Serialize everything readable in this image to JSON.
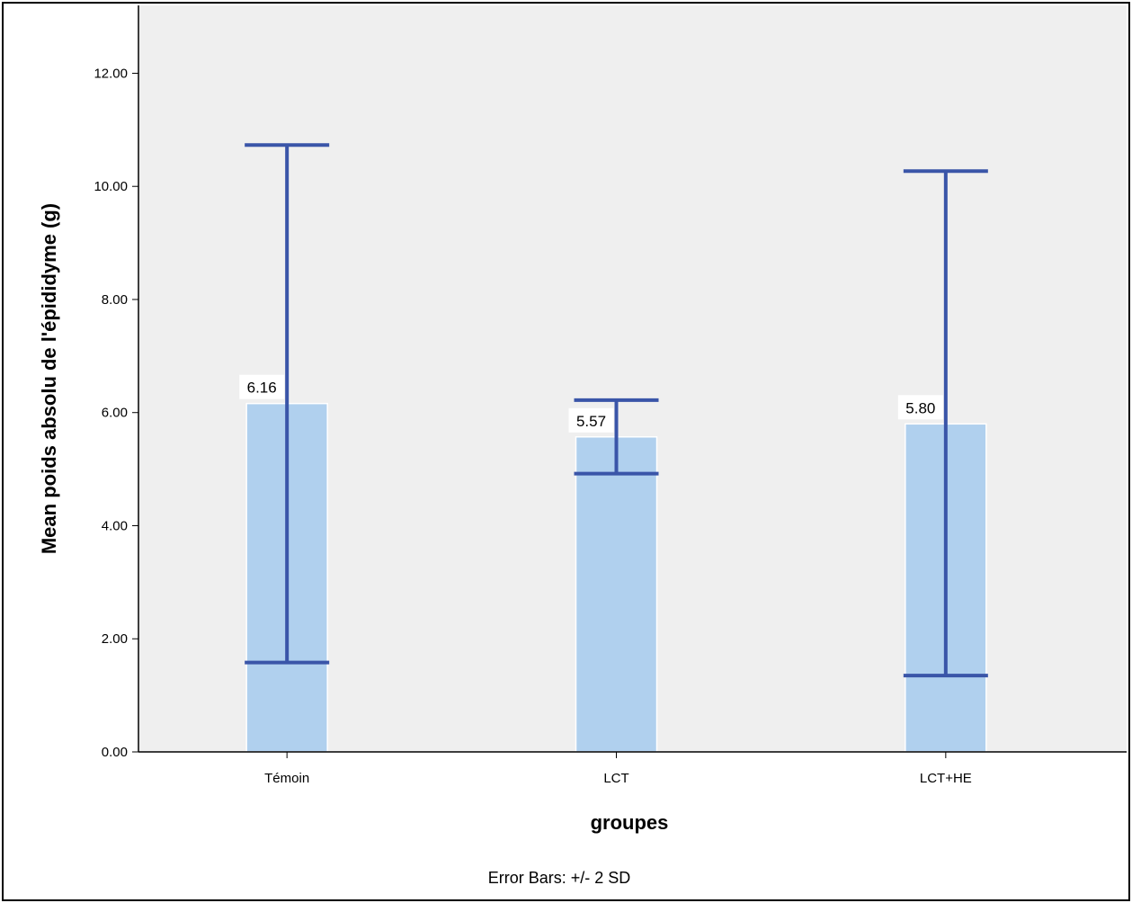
{
  "chart_data": {
    "type": "bar",
    "categories": [
      "Témoin",
      "LCT",
      "LCT+HE"
    ],
    "values": [
      6.16,
      5.57,
      5.8
    ],
    "data_labels": [
      "6.16",
      "5.57",
      "5.80"
    ],
    "error_bars": {
      "lower": [
        1.58,
        4.92,
        1.35
      ],
      "upper": [
        10.73,
        6.22,
        10.27
      ]
    },
    "xlabel": "groupes",
    "ylabel": "Mean poids absolu de l'épididyme (g)",
    "ylim": [
      0,
      13.2
    ],
    "yticks": [
      0,
      2,
      4,
      6,
      8,
      10,
      12
    ],
    "ytick_labels": [
      "0.00",
      "2.00",
      "4.00",
      "6.00",
      "8.00",
      "10.00",
      "12.00"
    ],
    "footnote": "Error Bars: +/- 2 SD",
    "grid": false,
    "legend": false,
    "colors": {
      "bar_fill": "#b0d0ee",
      "bar_stroke": "#ffffff",
      "error_bar": "#3a55a8",
      "plot_background": "#efefef",
      "label_background": "#ffffff"
    }
  }
}
